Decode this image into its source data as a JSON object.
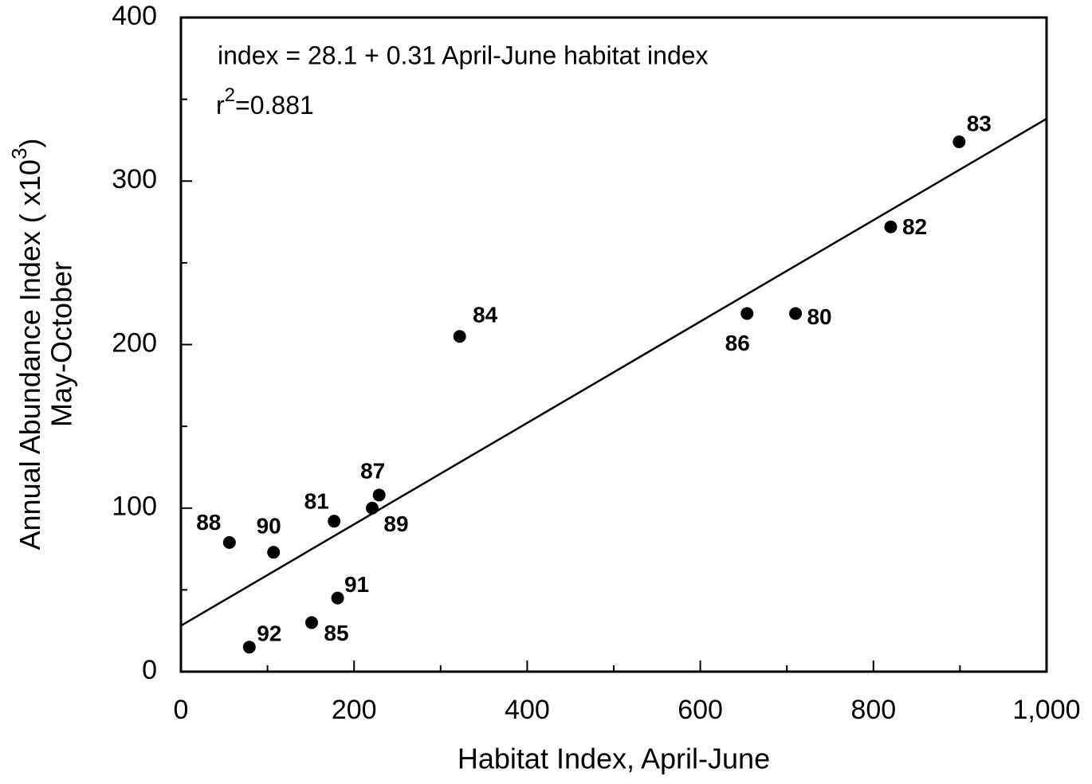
{
  "chart_data": {
    "type": "scatter",
    "x_label": "Habitat Index, April-June",
    "y_label": {
      "line1": "Annual Abundance Index ( x10",
      "sup": "3",
      "close": ")",
      "line2": "May-October"
    },
    "annotations": {
      "equation": "index = 28.1 + 0.31 April-June habitat index",
      "r2": {
        "base": "r",
        "sup": "2",
        "rest": "=0.881"
      }
    },
    "fit": {
      "intercept": 28.1,
      "slope": 0.31
    },
    "labels": [
      "83",
      "82",
      "80",
      "86",
      "84",
      "87",
      "89",
      "81",
      "88",
      "90",
      "91",
      "85",
      "92"
    ],
    "x": [
      899,
      820,
      710,
      654,
      322,
      229,
      221,
      177,
      56,
      107,
      181,
      151,
      79
    ],
    "y": [
      324,
      272,
      219,
      219,
      205,
      108,
      100,
      92,
      79,
      73,
      45,
      30,
      15
    ],
    "color": "#000000",
    "xlim": [
      0,
      1000
    ],
    "ylim": [
      0,
      400
    ],
    "xticks": [
      0,
      200,
      400,
      600,
      800,
      {
        "value": 1000,
        "label": "1,000"
      }
    ],
    "yticks": [
      0,
      100,
      200,
      300,
      400
    ],
    "xminorticks": [
      100,
      300,
      500,
      700,
      900
    ],
    "yminorticks": [
      50,
      150,
      250,
      350
    ]
  }
}
